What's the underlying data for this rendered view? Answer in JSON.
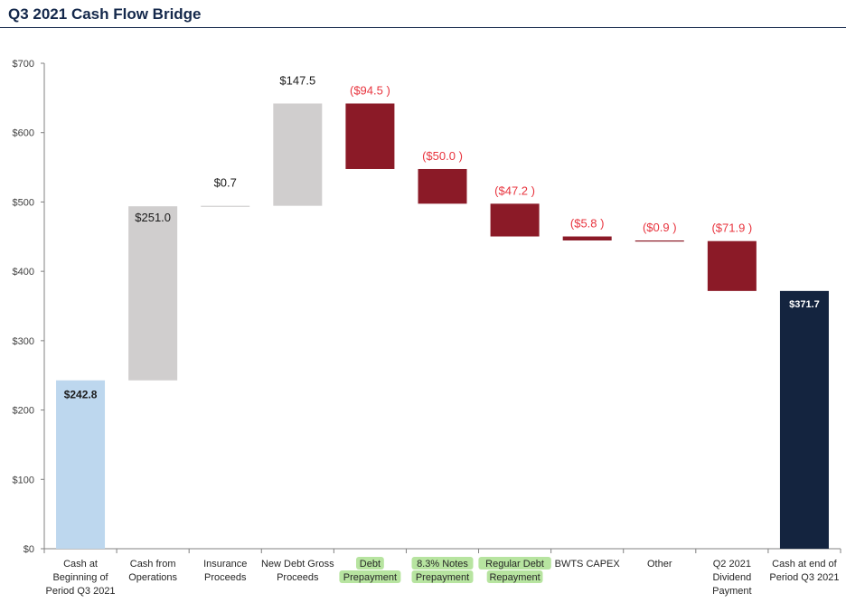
{
  "page_title": "Q3 2021 Cash Flow Bridge",
  "colors": {
    "title": "#14284b",
    "start_bar": "#bdd7ee",
    "increase_bar": "#d0cece",
    "decrease_bar": "#8b1a27",
    "end_bar": "#14243f",
    "negative_label": "#e8343e",
    "highlight": "#b7e4a0"
  },
  "chart_data": {
    "type": "waterfall",
    "title": "Q3 2021 Cash Flow Bridge",
    "ylim": [
      0,
      700
    ],
    "yticks": [
      0,
      100,
      200,
      300,
      400,
      500,
      600,
      700
    ],
    "ytick_labels": [
      "$0",
      "$100",
      "$200",
      "$300",
      "$400",
      "$500",
      "$600",
      "$700"
    ],
    "grid": false,
    "bars": [
      {
        "category": "Cash at Beginning of Period Q3 2021",
        "label_lines": [
          "Cash at",
          "Beginning of",
          "Period Q3 2021"
        ],
        "value": 242.8,
        "kind": "total",
        "value_label": "$242.8",
        "highlighted": false
      },
      {
        "category": "Cash from Operations",
        "label_lines": [
          "Cash from",
          "Operations"
        ],
        "value": 251.0,
        "kind": "increase",
        "value_label": "$251.0",
        "highlighted": false
      },
      {
        "category": "Insurance Proceeds",
        "label_lines": [
          "Insurance",
          "Proceeds"
        ],
        "value": 0.7,
        "kind": "increase",
        "value_label": "$0.7",
        "highlighted": false
      },
      {
        "category": "New Debt Gross Proceeds",
        "label_lines": [
          "New Debt Gross",
          "Proceeds"
        ],
        "value": 147.5,
        "kind": "increase",
        "value_label": "$147.5",
        "highlighted": false
      },
      {
        "category": "Debt Prepayment",
        "label_lines": [
          "Debt",
          "Prepayment"
        ],
        "value": -94.5,
        "kind": "decrease",
        "value_label": "($94.5 )",
        "highlighted": true
      },
      {
        "category": "8.3% Notes Prepayment",
        "label_lines": [
          "8.3% Notes",
          "Prepayment"
        ],
        "value": -50.0,
        "kind": "decrease",
        "value_label": "($50.0 )",
        "highlighted": true
      },
      {
        "category": "Regular Debt Repayment",
        "label_lines": [
          "Regular Debt",
          "Repayment"
        ],
        "value": -47.2,
        "kind": "decrease",
        "value_label": "($47.2 )",
        "highlighted": true
      },
      {
        "category": "BWTS CAPEX",
        "label_lines": [
          "BWTS CAPEX"
        ],
        "value": -5.8,
        "kind": "decrease",
        "value_label": "($5.8 )",
        "highlighted": false
      },
      {
        "category": "Other",
        "label_lines": [
          "Other"
        ],
        "value": -0.9,
        "kind": "decrease",
        "value_label": "($0.9 )",
        "highlighted": false
      },
      {
        "category": "Q2 2021 Dividend Payment",
        "label_lines": [
          "Q2 2021",
          "Dividend",
          "Payment"
        ],
        "value": -71.9,
        "kind": "decrease",
        "value_label": "($71.9 )",
        "highlighted": false
      },
      {
        "category": "Cash at end of Period Q3 2021",
        "label_lines": [
          "Cash at end of",
          "Period Q3 2021"
        ],
        "value": 371.7,
        "kind": "total",
        "value_label": "$371.7",
        "highlighted": false
      }
    ]
  }
}
